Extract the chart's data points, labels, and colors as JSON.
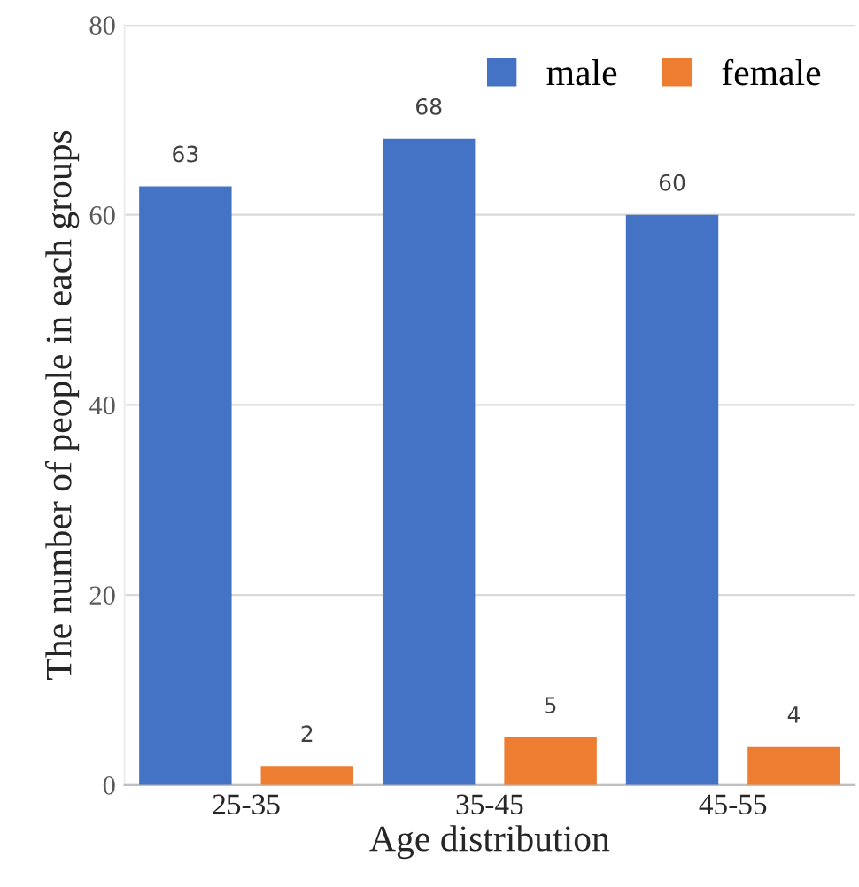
{
  "chart_data": {
    "type": "bar",
    "xlabel": "Age distribution",
    "ylabel": "The number of people in each groups",
    "categories": [
      "25-35",
      "35-45",
      "45-55"
    ],
    "series": [
      {
        "name": "male",
        "color": "#4472c4",
        "values": [
          63,
          68,
          60
        ]
      },
      {
        "name": "female",
        "color": "#ed7d31",
        "values": [
          2,
          5,
          4
        ]
      }
    ],
    "ylim": [
      0,
      80
    ],
    "yticks": [
      0,
      20,
      40,
      60,
      80
    ],
    "grid": "y",
    "legend": "top right",
    "data_labels": true
  }
}
